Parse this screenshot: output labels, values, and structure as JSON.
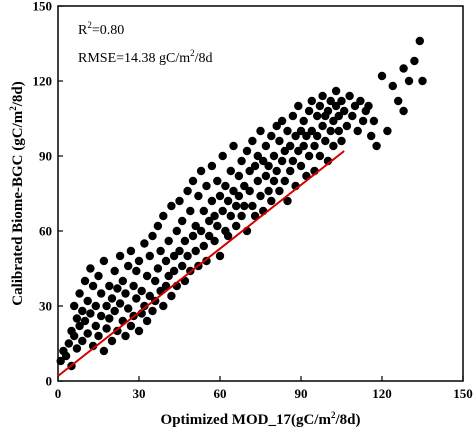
{
  "chart_data": {
    "type": "scatter",
    "xlabel": {
      "main": "Optimized MOD_17(gC/m",
      "sup": "2",
      "tail": "/8d)"
    },
    "ylabel": {
      "main": "Calibrated Biome-BGC (gC/m",
      "sup": "2",
      "tail": "/8d)"
    },
    "xlim": [
      0,
      150
    ],
    "ylim": [
      0,
      150
    ],
    "xticks": [
      "0",
      "30",
      "60",
      "90",
      "120",
      "150"
    ],
    "yticks": [
      "0",
      "30",
      "60",
      "90",
      "120",
      "150"
    ],
    "stats": {
      "r2_prefix": "R",
      "r2_sup": "2",
      "r2_value": "=0.80",
      "rmse_prefix": "RMSE=14.38 gC/m",
      "rmse_sup": "2",
      "rmse_tail": "/8d"
    },
    "fit_line": {
      "x": [
        0,
        106
      ],
      "y": [
        2,
        92
      ],
      "color": "#d40000"
    },
    "point_color": "#000000",
    "points": [
      [
        1,
        8
      ],
      [
        2,
        12
      ],
      [
        3,
        10
      ],
      [
        4,
        15
      ],
      [
        5,
        6
      ],
      [
        5,
        20
      ],
      [
        6,
        18
      ],
      [
        6,
        30
      ],
      [
        7,
        25
      ],
      [
        7,
        13
      ],
      [
        8,
        22
      ],
      [
        8,
        35
      ],
      [
        9,
        28
      ],
      [
        9,
        16
      ],
      [
        10,
        40
      ],
      [
        10,
        24
      ],
      [
        11,
        19
      ],
      [
        11,
        32
      ],
      [
        12,
        27
      ],
      [
        12,
        45
      ],
      [
        13,
        14
      ],
      [
        13,
        38
      ],
      [
        14,
        22
      ],
      [
        14,
        30
      ],
      [
        15,
        18
      ],
      [
        15,
        42
      ],
      [
        16,
        26
      ],
      [
        16,
        35
      ],
      [
        17,
        12
      ],
      [
        17,
        48
      ],
      [
        18,
        30
      ],
      [
        18,
        21
      ],
      [
        19,
        38
      ],
      [
        19,
        25
      ],
      [
        20,
        16
      ],
      [
        20,
        33
      ],
      [
        21,
        44
      ],
      [
        21,
        28
      ],
      [
        22,
        20
      ],
      [
        22,
        37
      ],
      [
        23,
        31
      ],
      [
        23,
        50
      ],
      [
        24,
        24
      ],
      [
        24,
        40
      ],
      [
        25,
        18
      ],
      [
        25,
        35
      ],
      [
        26,
        46
      ],
      [
        26,
        29
      ],
      [
        27,
        22
      ],
      [
        27,
        52
      ],
      [
        28,
        38
      ],
      [
        28,
        26
      ],
      [
        29,
        44
      ],
      [
        29,
        33
      ],
      [
        30,
        20
      ],
      [
        30,
        48
      ],
      [
        31,
        36
      ],
      [
        31,
        27
      ],
      [
        32,
        55
      ],
      [
        32,
        30
      ],
      [
        33,
        42
      ],
      [
        33,
        24
      ],
      [
        34,
        50
      ],
      [
        34,
        34
      ],
      [
        35,
        28
      ],
      [
        35,
        58
      ],
      [
        36,
        40
      ],
      [
        36,
        32
      ],
      [
        37,
        62
      ],
      [
        37,
        45
      ],
      [
        38,
        36
      ],
      [
        38,
        52
      ],
      [
        39,
        30
      ],
      [
        39,
        66
      ],
      [
        40,
        48
      ],
      [
        40,
        38
      ],
      [
        41,
        56
      ],
      [
        41,
        42
      ],
      [
        42,
        34
      ],
      [
        42,
        70
      ],
      [
        43,
        50
      ],
      [
        43,
        44
      ],
      [
        44,
        60
      ],
      [
        44,
        38
      ],
      [
        45,
        72
      ],
      [
        45,
        52
      ],
      [
        46,
        46
      ],
      [
        46,
        64
      ],
      [
        47,
        40
      ],
      [
        47,
        56
      ],
      [
        48,
        76
      ],
      [
        48,
        50
      ],
      [
        49,
        44
      ],
      [
        49,
        68
      ],
      [
        50,
        58
      ],
      [
        50,
        80
      ],
      [
        51,
        52
      ],
      [
        51,
        62
      ],
      [
        52,
        46
      ],
      [
        52,
        74
      ],
      [
        53,
        60
      ],
      [
        53,
        84
      ],
      [
        54,
        54
      ],
      [
        54,
        68
      ],
      [
        55,
        48
      ],
      [
        55,
        78
      ],
      [
        56,
        64
      ],
      [
        56,
        58
      ],
      [
        57,
        72
      ],
      [
        57,
        86
      ],
      [
        58,
        56
      ],
      [
        58,
        66
      ],
      [
        59,
        80
      ],
      [
        59,
        62
      ],
      [
        60,
        50
      ],
      [
        60,
        74
      ],
      [
        61,
        68
      ],
      [
        61,
        90
      ],
      [
        62,
        60
      ],
      [
        62,
        78
      ],
      [
        63,
        72
      ],
      [
        63,
        58
      ],
      [
        64,
        84
      ],
      [
        64,
        66
      ],
      [
        65,
        76
      ],
      [
        65,
        94
      ],
      [
        66,
        70
      ],
      [
        66,
        62
      ],
      [
        67,
        82
      ],
      [
        67,
        74
      ],
      [
        68,
        66
      ],
      [
        68,
        88
      ],
      [
        69,
        78
      ],
      [
        69,
        70
      ],
      [
        70,
        92
      ],
      [
        70,
        60
      ],
      [
        71,
        84
      ],
      [
        71,
        76
      ],
      [
        72,
        70
      ],
      [
        72,
        96
      ],
      [
        73,
        86
      ],
      [
        73,
        66
      ],
      [
        74,
        80
      ],
      [
        74,
        90
      ],
      [
        75,
        74
      ],
      [
        75,
        100
      ],
      [
        76,
        88
      ],
      [
        76,
        68
      ],
      [
        77,
        82
      ],
      [
        77,
        94
      ],
      [
        78,
        76
      ],
      [
        78,
        86
      ],
      [
        79,
        98
      ],
      [
        79,
        72
      ],
      [
        80,
        90
      ],
      [
        80,
        80
      ],
      [
        81,
        102
      ],
      [
        81,
        84
      ],
      [
        82,
        76
      ],
      [
        82,
        96
      ],
      [
        83,
        88
      ],
      [
        83,
        104
      ],
      [
        84,
        80
      ],
      [
        84,
        92
      ],
      [
        85,
        72
      ],
      [
        85,
        100
      ],
      [
        86,
        94
      ],
      [
        86,
        84
      ],
      [
        87,
        106
      ],
      [
        87,
        88
      ],
      [
        88,
        98
      ],
      [
        88,
        78
      ],
      [
        89,
        92
      ],
      [
        89,
        110
      ],
      [
        90,
        100
      ],
      [
        90,
        86
      ],
      [
        91,
        94
      ],
      [
        91,
        104
      ],
      [
        92,
        82
      ],
      [
        92,
        98
      ],
      [
        93,
        108
      ],
      [
        93,
        90
      ],
      [
        94,
        100
      ],
      [
        94,
        112
      ],
      [
        95,
        94
      ],
      [
        95,
        84
      ],
      [
        96,
        106
      ],
      [
        96,
        98
      ],
      [
        97,
        90
      ],
      [
        97,
        110
      ],
      [
        98,
        102
      ],
      [
        98,
        114
      ],
      [
        99,
        96
      ],
      [
        99,
        106
      ],
      [
        100,
        88
      ],
      [
        100,
        108
      ],
      [
        101,
        100
      ],
      [
        101,
        112
      ],
      [
        102,
        104
      ],
      [
        102,
        94
      ],
      [
        103,
        110
      ],
      [
        103,
        116
      ],
      [
        104,
        100
      ],
      [
        104,
        106
      ],
      [
        105,
        112
      ],
      [
        105,
        96
      ],
      [
        106,
        108
      ],
      [
        107,
        102
      ],
      [
        108,
        114
      ],
      [
        109,
        106
      ],
      [
        110,
        110
      ],
      [
        111,
        100
      ],
      [
        112,
        112
      ],
      [
        113,
        104
      ],
      [
        114,
        108
      ],
      [
        115,
        110
      ],
      [
        116,
        98
      ],
      [
        117,
        104
      ],
      [
        118,
        94
      ],
      [
        120,
        122
      ],
      [
        124,
        118
      ],
      [
        126,
        112
      ],
      [
        128,
        125
      ],
      [
        130,
        120
      ],
      [
        132,
        128
      ],
      [
        134,
        136
      ],
      [
        135,
        120
      ],
      [
        128,
        108
      ],
      [
        122,
        100
      ]
    ]
  }
}
